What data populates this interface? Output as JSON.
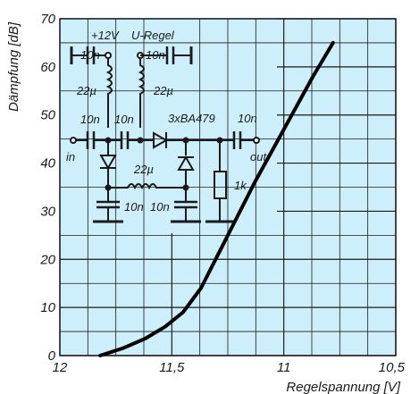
{
  "chart_data": {
    "type": "line",
    "title": "",
    "xlabel": "Regelspannung [V]",
    "ylabel": "Dämpfung [dB]",
    "xlim": [
      12,
      10.5
    ],
    "ylim": [
      0,
      70
    ],
    "x_reversed": true,
    "grid": true,
    "x_ticks": [
      {
        "value": 12,
        "label": "12"
      },
      {
        "value": 11.5,
        "label": "11,5"
      },
      {
        "value": 11,
        "label": "11"
      },
      {
        "value": 10.5,
        "label": "10,5"
      }
    ],
    "y_ticks": [
      0,
      10,
      20,
      30,
      40,
      50,
      60,
      70
    ],
    "series": [
      {
        "name": "",
        "x": [
          11.82,
          11.72,
          11.62,
          11.53,
          11.45,
          11.37,
          11.25,
          11.13,
          11.0,
          10.87,
          10.78
        ],
        "y": [
          0,
          1.5,
          3.5,
          6,
          9,
          14,
          25,
          36,
          47,
          58,
          65
        ]
      }
    ],
    "inset_schematic": {
      "labels": {
        "supply": "+12V",
        "control": "U-Regel",
        "c1": "10n",
        "c2": "10n",
        "c3": "10n",
        "c4": "10n",
        "c5": "10n",
        "c6": "10n",
        "c7": "10n",
        "l1": "22µ",
        "l2": "22µ",
        "l3": "22µ",
        "diodes": "3xBA479",
        "r1": "1k",
        "input": "in",
        "output": "out"
      }
    }
  },
  "colors": {
    "plot_background": "#cdeffc",
    "grid": "#1a1a1a",
    "curve": "#000000"
  }
}
